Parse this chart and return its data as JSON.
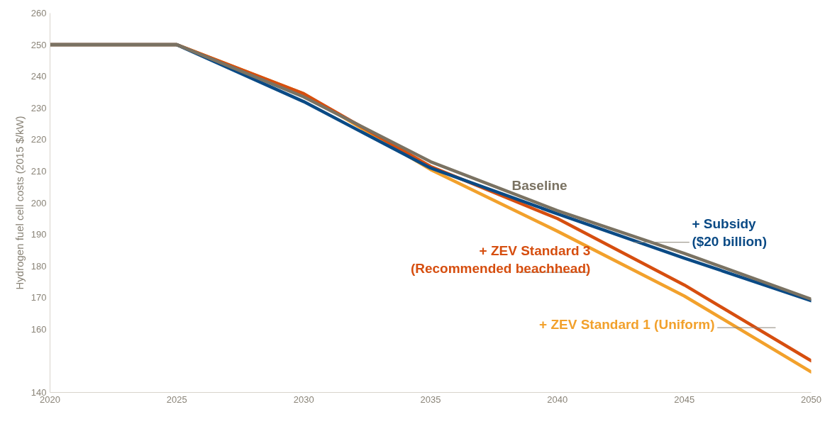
{
  "chart_data": {
    "type": "line",
    "ylabel": "Hydrogen fuel cell costs (2015 $/kW)",
    "x": [
      2020,
      2025,
      2030,
      2035,
      2040,
      2045,
      2050
    ],
    "series": [
      {
        "name": "Baseline",
        "color": "#7a7262",
        "values": [
          250,
          250,
          233.5,
          213,
          197.5,
          184,
          169.5
        ]
      },
      {
        "name": "+ Subsidy\n($20 billion)",
        "color": "#0a4a85",
        "values": [
          250,
          250,
          232,
          211,
          196.5,
          182.5,
          169
        ]
      },
      {
        "name": "+ ZEV Standard 3\n(Recommended beachhead)",
        "color": "#d64e0f",
        "values": [
          250,
          250,
          234.5,
          211.5,
          195,
          174,
          150
        ]
      },
      {
        "name": "+ ZEV Standard 1 (Uniform)",
        "color": "#f2a12c",
        "values": [
          250,
          250,
          234.5,
          210.5,
          191,
          170.5,
          146.5
        ]
      }
    ],
    "xlim": [
      2020,
      2050
    ],
    "xticks": [
      2020,
      2025,
      2030,
      2035,
      2040,
      2045,
      2050
    ],
    "ylim": [
      140,
      260
    ],
    "yticks": [
      140,
      160,
      170,
      180,
      190,
      200,
      210,
      220,
      230,
      240,
      250,
      260
    ],
    "grid": false,
    "legend": false
  }
}
